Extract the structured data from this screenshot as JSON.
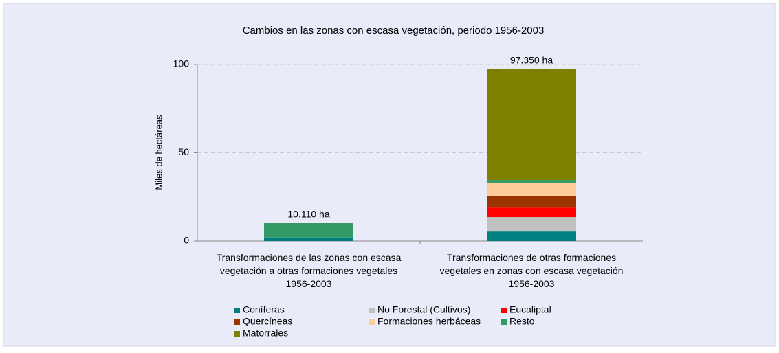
{
  "chart_data": {
    "type": "stacked_bar",
    "title": "Cambios en las zonas con escasa vegetación, periodo 1956-2003",
    "y_label": "Miles de hectáreas",
    "categories": [
      "Transformaciones de las zonas con escasa\nvegetación a otras formaciones vegetales\n1956-2003",
      "Transformaciones de otras formaciones\nvegetales en zonas con escasa vegetación\n1956-2003"
    ],
    "series": [
      {
        "name": "Coníferas",
        "color": "#008080",
        "values": [
          2,
          5.4
        ]
      },
      {
        "name": "No Forestal (Cultivos)",
        "color": "#c0c0c0",
        "values": [
          0,
          8.2
        ]
      },
      {
        "name": "Eucaliptal",
        "color": "#ff0000",
        "values": [
          0,
          5.4
        ]
      },
      {
        "name": "Quercíneas",
        "color": "#993300",
        "values": [
          0,
          6.6
        ]
      },
      {
        "name": "Formaciones herbáceas",
        "color": "#ffcc99",
        "values": [
          0,
          7.4
        ]
      },
      {
        "name": "Resto",
        "color": "#339966",
        "values": [
          8.11,
          1.6
        ]
      },
      {
        "name": "Matorrales",
        "color": "#808000",
        "values": [
          0,
          62.75
        ]
      }
    ],
    "totals": [
      10.11,
      97.35
    ],
    "total_labels": [
      "10.110 ha",
      "97.350 ha"
    ],
    "ylim": [
      0,
      100
    ],
    "yticks": [
      0,
      50,
      100
    ],
    "grid": true
  }
}
